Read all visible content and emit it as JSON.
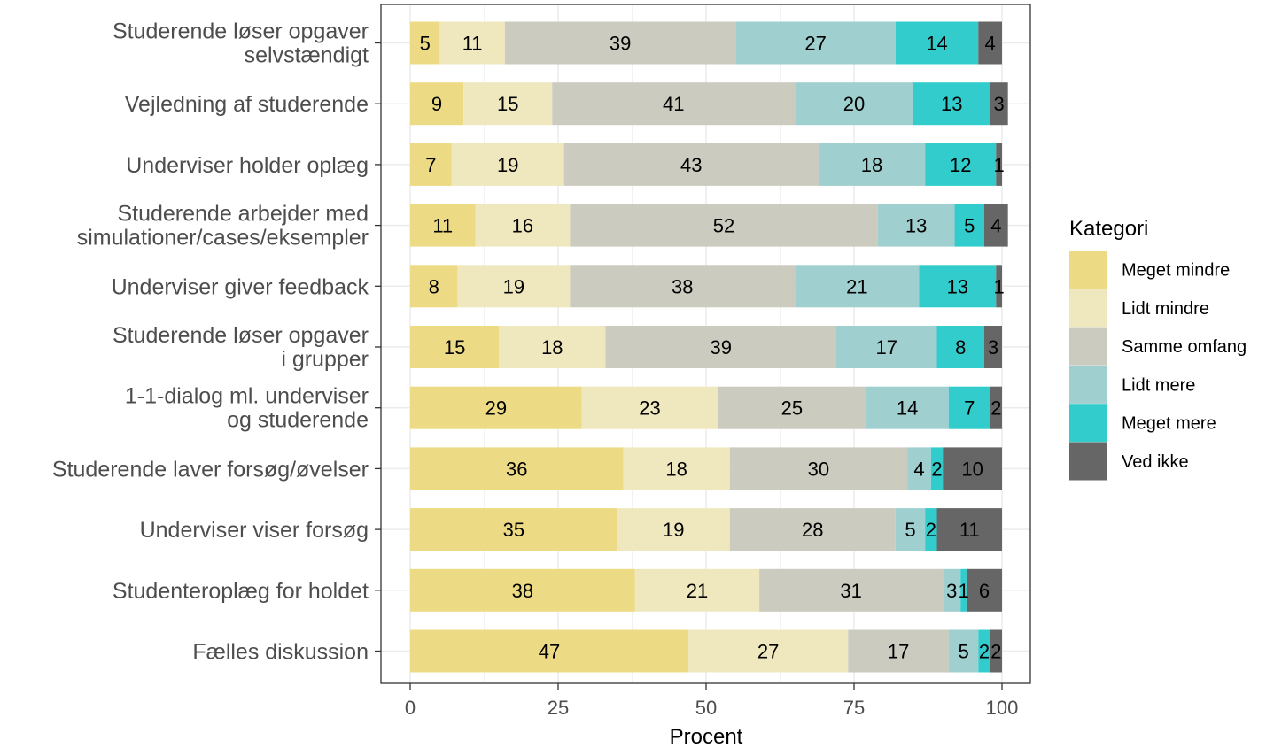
{
  "chart_data": {
    "type": "bar",
    "orientation": "horizontal",
    "stacked": true,
    "xlabel": "Procent",
    "ylabel": "",
    "xlim": [
      0,
      100
    ],
    "xticks": [
      0,
      25,
      50,
      75,
      100
    ],
    "grid": true,
    "legend": {
      "title": "Kategori",
      "placement": "right"
    },
    "categories": [
      [
        "Studerende løser opgaver",
        "selvstændigt"
      ],
      [
        "Vejledning af studerende"
      ],
      [
        "Underviser holder oplæg"
      ],
      [
        "Studerende arbejder med",
        "simulationer/cases/eksempler"
      ],
      [
        "Underviser giver feedback"
      ],
      [
        "Studerende løser opgaver",
        "i grupper"
      ],
      [
        "1-1-dialog ml. underviser",
        "og studerende"
      ],
      [
        "Studerende laver forsøg/øvelser"
      ],
      [
        "Underviser viser forsøg"
      ],
      [
        "Studenteroplæg for holdet"
      ],
      [
        "Fælles diskussion"
      ]
    ],
    "series": [
      {
        "name": "Meget mindre",
        "color": "#ecdb84",
        "values": [
          5,
          9,
          7,
          11,
          8,
          15,
          29,
          36,
          35,
          38,
          47
        ]
      },
      {
        "name": "Lidt mindre",
        "color": "#efe8bf",
        "values": [
          11,
          15,
          19,
          16,
          19,
          18,
          23,
          18,
          19,
          21,
          27
        ]
      },
      {
        "name": "Samme omfang",
        "color": "#cbcbbf",
        "values": [
          39,
          41,
          43,
          52,
          38,
          39,
          25,
          30,
          28,
          31,
          17
        ]
      },
      {
        "name": "Lidt mere",
        "color": "#9fcfcf",
        "values": [
          27,
          20,
          18,
          13,
          21,
          17,
          14,
          4,
          5,
          3,
          5
        ]
      },
      {
        "name": "Meget mere",
        "color": "#33cccc",
        "values": [
          14,
          13,
          12,
          5,
          13,
          8,
          7,
          2,
          2,
          1,
          2
        ]
      },
      {
        "name": "Ved ikke",
        "color": "#666666",
        "values": [
          4,
          3,
          1,
          4,
          1,
          3,
          2,
          10,
          11,
          6,
          2
        ]
      }
    ]
  }
}
